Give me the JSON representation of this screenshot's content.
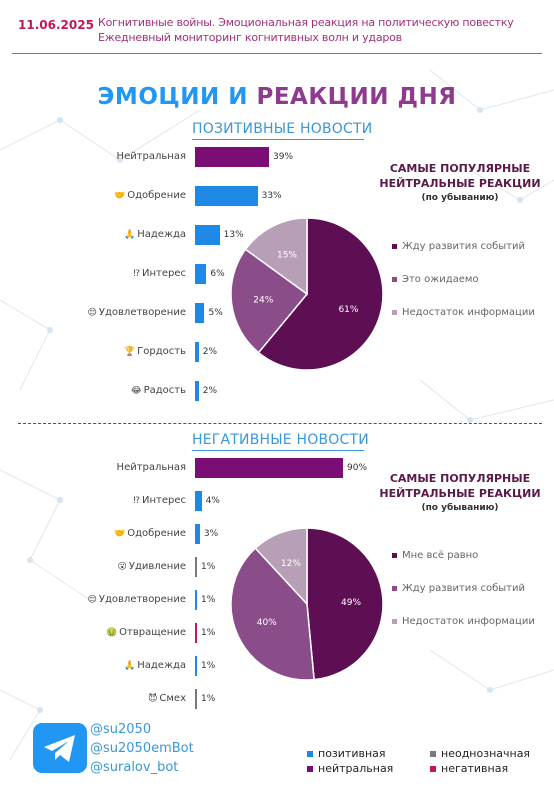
{
  "header": {
    "date": "11.06.2025",
    "line1": "Когнитивные войны. Эмоциональная реакция на политическую повестку",
    "line2": "Ежедневный мониторинг когнитивных волн и ударов"
  },
  "title": {
    "part1": "ЭМОЦИИ И ",
    "part2": "РЕАКЦИИ ДНЯ"
  },
  "colors": {
    "positive": "#1e88e5",
    "neutral": "#7b0e74",
    "ambiguous": "#7a7a7a",
    "negative": "#c2185b",
    "pie_dark": "#5e0e52",
    "pie_mid": "#8a4d8a",
    "pie_light": "#b89fb8"
  },
  "sections": [
    {
      "title": "ПОЗИТИВНЫЕ НОВОСТИ",
      "popular_title": "САМЫЕ ПОПУЛЯРНЫЕ НЕЙТРАЛЬНЫЕ РЕАКЦИИ",
      "popular_sub": "(по убыванию)",
      "bars": [
        {
          "label": "Нейтральная",
          "icon": "",
          "value": 39,
          "display": "39%",
          "kind": "neutral"
        },
        {
          "label": "Одобрение",
          "icon": "🤝",
          "value": 33,
          "display": "33%",
          "kind": "positive"
        },
        {
          "label": "Надежда",
          "icon": "🙏",
          "value": 13,
          "display": "13%",
          "kind": "positive"
        },
        {
          "label": "Интерес",
          "icon": "⁉",
          "value": 6,
          "display": "6%",
          "kind": "positive"
        },
        {
          "label": "Удовлетворение",
          "icon": "😌",
          "value": 5,
          "display": "5%",
          "kind": "positive"
        },
        {
          "label": "Гордость",
          "icon": "🏆",
          "value": 2,
          "display": "2%",
          "kind": "positive"
        },
        {
          "label": "Радость",
          "icon": "😂",
          "value": 2,
          "display": "2%",
          "kind": "positive"
        }
      ],
      "pie": [
        {
          "name": "Жду развития событий",
          "value": 61,
          "display": "61%"
        },
        {
          "name": "Это ожидаемо",
          "value": 24,
          "display": "24%"
        },
        {
          "name": "Недостаток информации",
          "value": 15,
          "display": "15%"
        }
      ]
    },
    {
      "title": "НЕГАТИВНЫЕ НОВОСТИ",
      "popular_title": "САМЫЕ ПОПУЛЯРНЫЕ НЕЙТРАЛЬНЫЕ РЕАКЦИИ",
      "popular_sub": "(по убыванию)",
      "bars": [
        {
          "label": "Нейтральная",
          "icon": "",
          "value": 90,
          "display": "90%",
          "kind": "neutral"
        },
        {
          "label": "Интерес",
          "icon": "⁉",
          "value": 4,
          "display": "4%",
          "kind": "positive"
        },
        {
          "label": "Одобрение",
          "icon": "🤝",
          "value": 3,
          "display": "3%",
          "kind": "positive"
        },
        {
          "label": "Удивление",
          "icon": "😮",
          "value": 1,
          "display": "1%",
          "kind": "ambiguous"
        },
        {
          "label": "Удовлетворение",
          "icon": "😌",
          "value": 1,
          "display": "1%",
          "kind": "positive"
        },
        {
          "label": "Отвращение",
          "icon": "🤢",
          "value": 1,
          "display": "1%",
          "kind": "negative"
        },
        {
          "label": "Надежда",
          "icon": "🙏",
          "value": 1,
          "display": "1%",
          "kind": "positive"
        },
        {
          "label": "Смех",
          "icon": "😈",
          "value": 1,
          "display": "1%",
          "kind": "ambiguous"
        }
      ],
      "pie": [
        {
          "name": "Мне всё равно",
          "value": 49,
          "display": "49%"
        },
        {
          "name": "Жду развития событий",
          "value": 40,
          "display": "40%"
        },
        {
          "name": "Недостаток информации",
          "value": 12,
          "display": "12%"
        }
      ]
    }
  ],
  "chart_data": [
    {
      "type": "bar",
      "title": "ПОЗИТИВНЫЕ НОВОСТИ",
      "categories": [
        "Нейтральная",
        "Одобрение",
        "Надежда",
        "Интерес",
        "Удовлетворение",
        "Гордость",
        "Радость"
      ],
      "values": [
        39,
        33,
        13,
        6,
        5,
        2,
        2
      ]
    },
    {
      "type": "pie",
      "title": "САМЫЕ ПОПУЛЯРНЫЕ НЕЙТРАЛЬНЫЕ РЕАКЦИИ",
      "categories": [
        "Жду развития событий",
        "Это ожидаемо",
        "Недостаток информации"
      ],
      "values": [
        61,
        24,
        15
      ]
    },
    {
      "type": "bar",
      "title": "НЕГАТИВНЫЕ НОВОСТИ",
      "categories": [
        "Нейтральная",
        "Интерес",
        "Одобрение",
        "Удивление",
        "Удовлетворение",
        "Отвращение",
        "Надежда",
        "Смех"
      ],
      "values": [
        90,
        4,
        3,
        1,
        1,
        1,
        1,
        1
      ]
    },
    {
      "type": "pie",
      "title": "САМЫЕ ПОПУЛЯРНЫЕ НЕЙТРАЛЬНЫЕ РЕАКЦИИ",
      "categories": [
        "Мне всё равно",
        "Жду развития событий",
        "Недостаток информации"
      ],
      "values": [
        49,
        40,
        12
      ]
    }
  ],
  "footer": {
    "handles": [
      "@su2050",
      "@su2050emBot",
      "@suralov_bot"
    ],
    "legend": [
      {
        "label": "позитивная",
        "kind": "positive"
      },
      {
        "label": "неоднозначная",
        "kind": "ambiguous"
      },
      {
        "label": "нейтральная",
        "kind": "neutral"
      },
      {
        "label": "негативная",
        "kind": "negative"
      }
    ]
  }
}
